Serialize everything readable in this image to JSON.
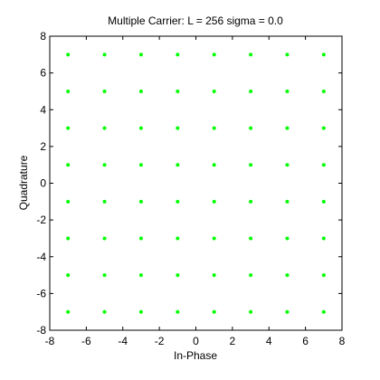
{
  "chart_data": {
    "type": "scatter",
    "title": "Multiple Carrier: L = 256 sigma = 0.0",
    "xlabel": "In-Phase",
    "ylabel": "Quadrature",
    "xlim": [
      -8,
      8
    ],
    "ylim": [
      -8,
      8
    ],
    "xticks": [
      -8,
      -6,
      -4,
      -2,
      0,
      2,
      4,
      6,
      8
    ],
    "yticks": [
      -8,
      -6,
      -4,
      -2,
      0,
      2,
      4,
      6,
      8
    ],
    "grid": false,
    "marker": "dot",
    "marker_color": "#00ff00",
    "points": [
      [
        -7,
        7
      ],
      [
        -5,
        7
      ],
      [
        -3,
        7
      ],
      [
        -1,
        7
      ],
      [
        1,
        7
      ],
      [
        3,
        7
      ],
      [
        5,
        7
      ],
      [
        7,
        7
      ],
      [
        -7,
        5
      ],
      [
        -5,
        5
      ],
      [
        -3,
        5
      ],
      [
        -1,
        5
      ],
      [
        1,
        5
      ],
      [
        3,
        5
      ],
      [
        5,
        5
      ],
      [
        7,
        5
      ],
      [
        -7,
        3
      ],
      [
        -5,
        3
      ],
      [
        -3,
        3
      ],
      [
        -1,
        3
      ],
      [
        1,
        3
      ],
      [
        3,
        3
      ],
      [
        5,
        3
      ],
      [
        7,
        3
      ],
      [
        -7,
        1
      ],
      [
        -5,
        1
      ],
      [
        -3,
        1
      ],
      [
        -1,
        1
      ],
      [
        1,
        1
      ],
      [
        3,
        1
      ],
      [
        5,
        1
      ],
      [
        7,
        1
      ],
      [
        -7,
        -1
      ],
      [
        -5,
        -1
      ],
      [
        -3,
        -1
      ],
      [
        -1,
        -1
      ],
      [
        1,
        -1
      ],
      [
        3,
        -1
      ],
      [
        5,
        -1
      ],
      [
        7,
        -1
      ],
      [
        -7,
        -3
      ],
      [
        -5,
        -3
      ],
      [
        -3,
        -3
      ],
      [
        -1,
        -3
      ],
      [
        1,
        -3
      ],
      [
        3,
        -3
      ],
      [
        5,
        -3
      ],
      [
        7,
        -3
      ],
      [
        -7,
        -5
      ],
      [
        -5,
        -5
      ],
      [
        -3,
        -5
      ],
      [
        -1,
        -5
      ],
      [
        1,
        -5
      ],
      [
        3,
        -5
      ],
      [
        5,
        -5
      ],
      [
        7,
        -5
      ],
      [
        -7,
        -7
      ],
      [
        -5,
        -7
      ],
      [
        -3,
        -7
      ],
      [
        -1,
        -7
      ],
      [
        1,
        -7
      ],
      [
        3,
        -7
      ],
      [
        5,
        -7
      ],
      [
        7,
        -7
      ]
    ]
  }
}
